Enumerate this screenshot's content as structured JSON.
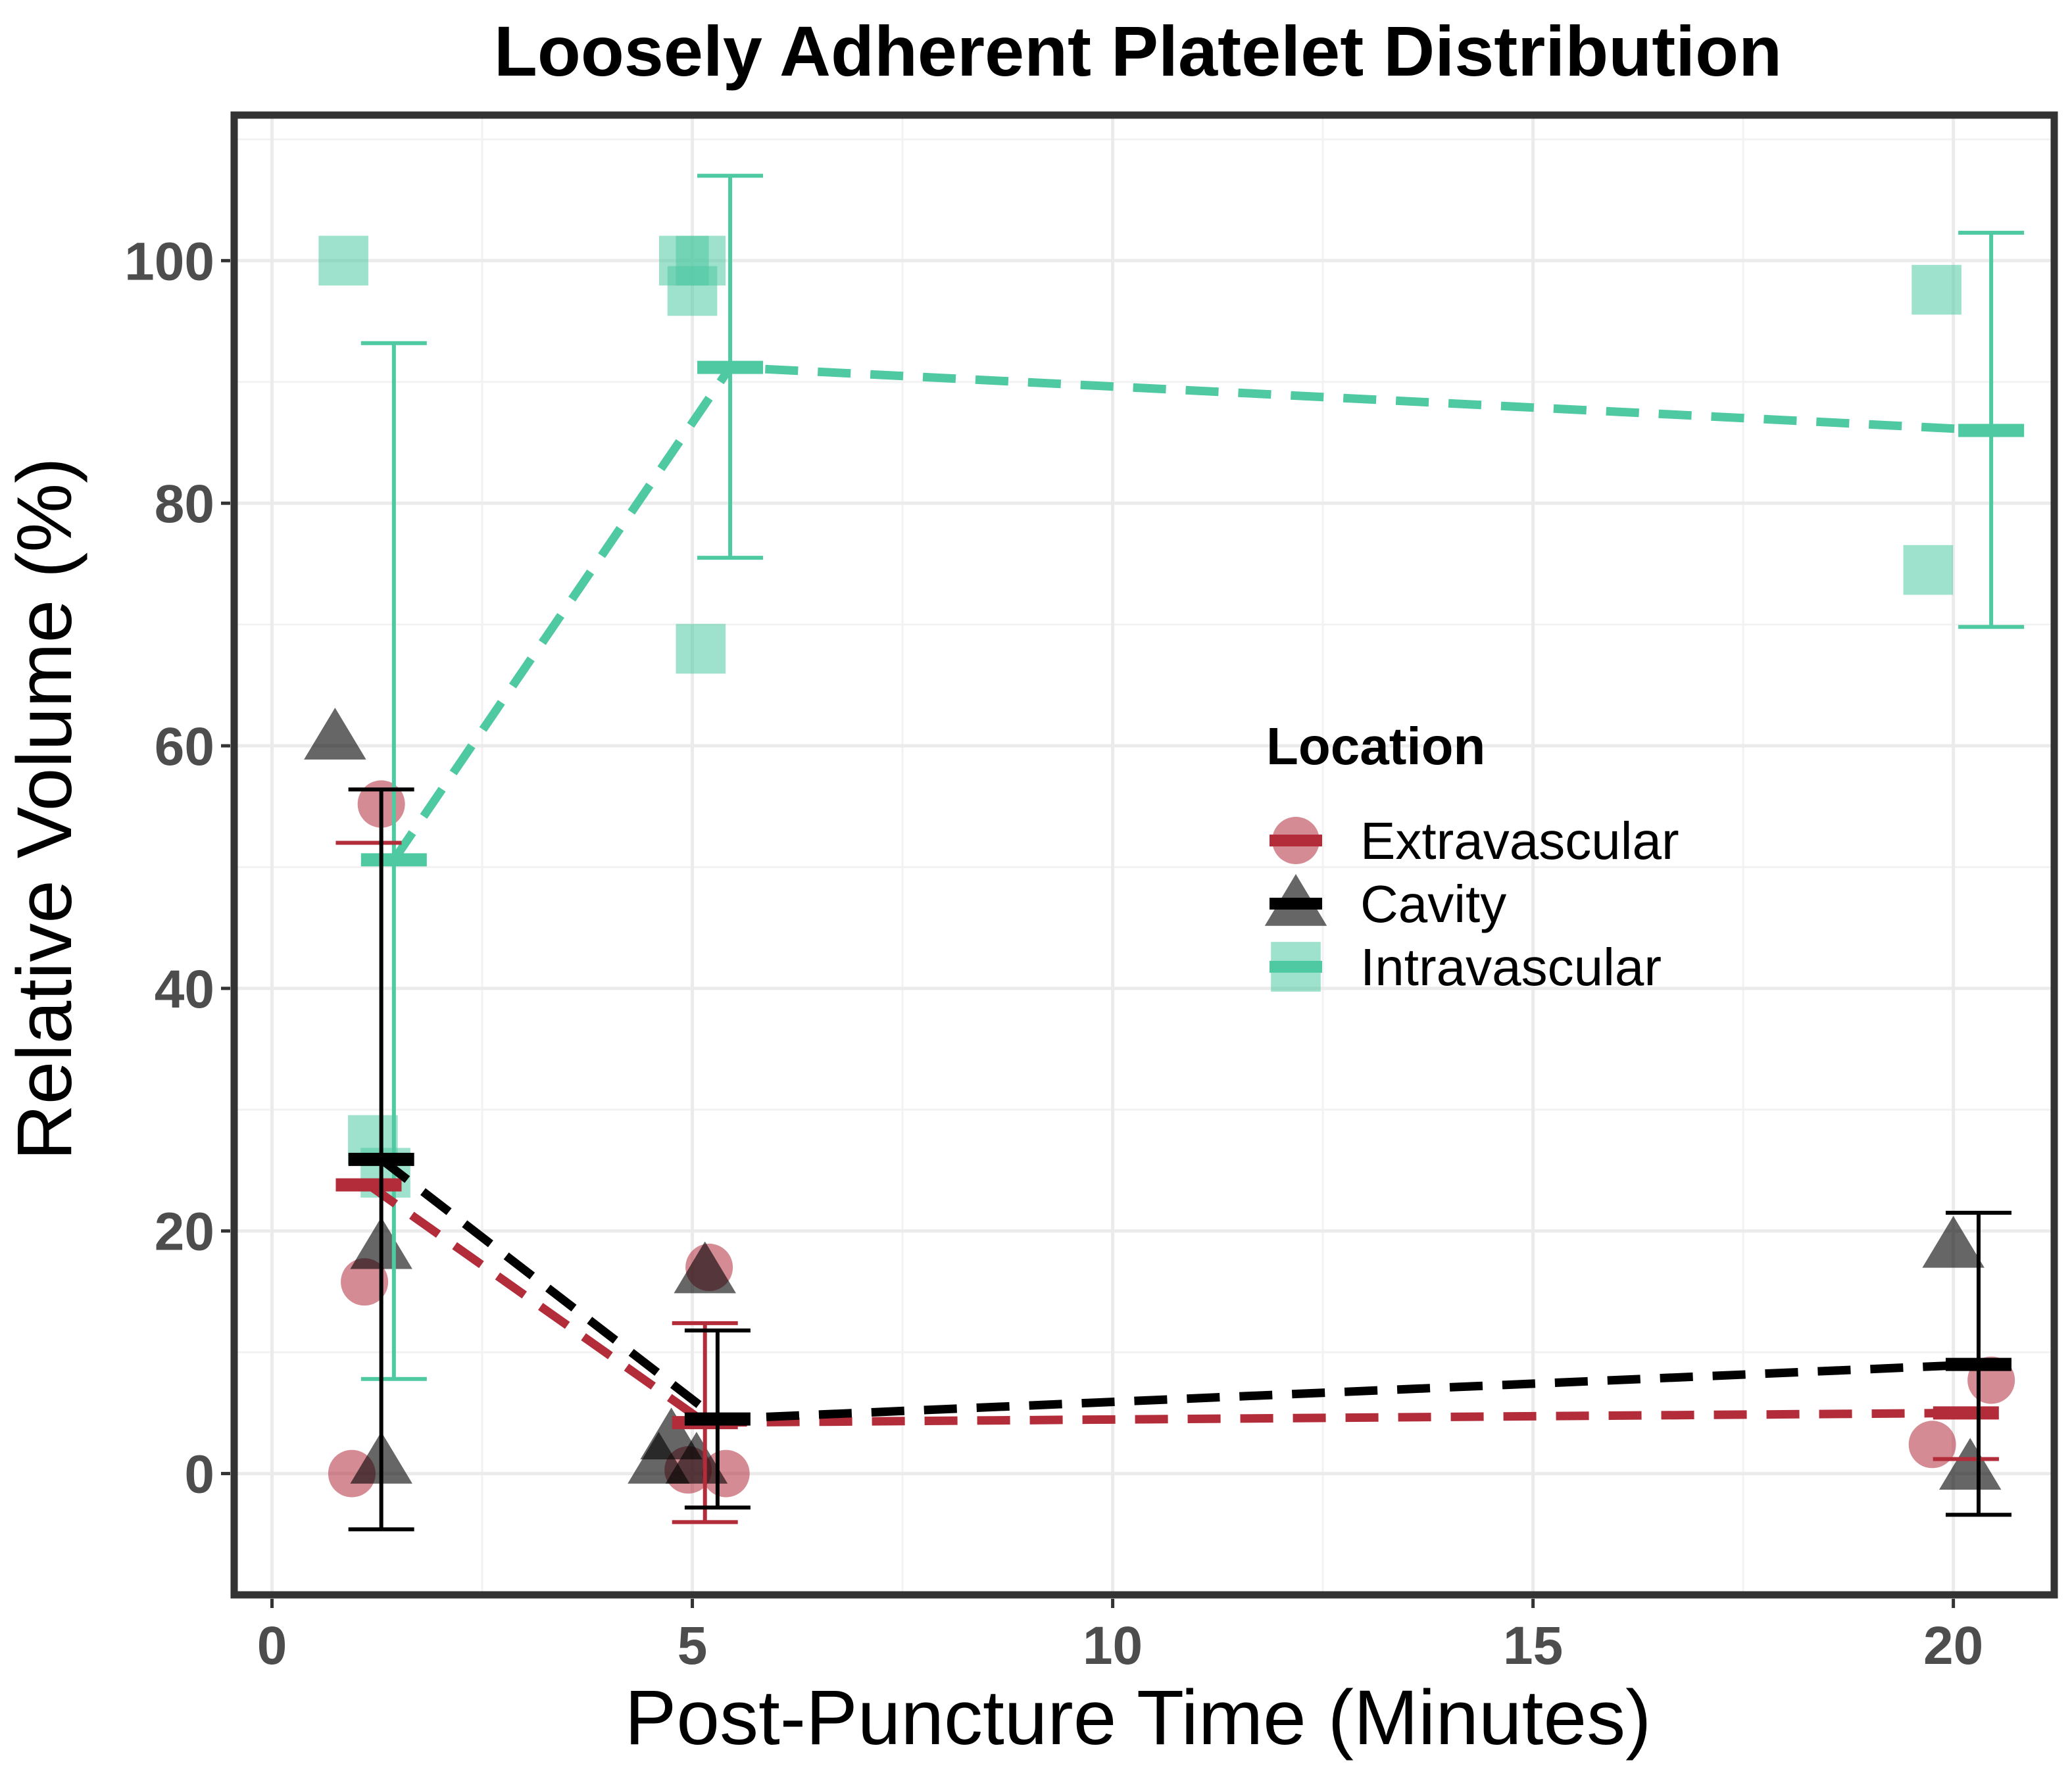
{
  "chart_data": {
    "type": "scatter",
    "title": "Loosely Adherent Platelet Distribution",
    "xlabel": "Post-Puncture Time (Minutes)",
    "ylabel": "Relative Volume (%)",
    "xlim": [
      -0.45,
      21.2
    ],
    "ylim": [
      -10,
      112
    ],
    "x_ticks": [
      0,
      5,
      10,
      15,
      20
    ],
    "y_ticks": [
      0,
      20,
      40,
      60,
      80,
      100
    ],
    "grid": true,
    "legend": {
      "title": "Location",
      "position": "right-center",
      "entries": [
        "Extravascular",
        "Cavity",
        "Intravascular"
      ]
    },
    "series": [
      {
        "name": "Extravascular",
        "color": "#b22c3a",
        "marker": "circle",
        "time": [
          1,
          5,
          20
        ],
        "mean": [
          23.8,
          4.2,
          5.0
        ],
        "error_low": [
          52.0,
          -4.0,
          1.2
        ],
        "error_high": [
          52.0,
          12.4,
          1.2
        ],
        "points": [
          [
            0.95,
            0
          ],
          [
            1.1,
            15.8
          ],
          [
            1.3,
            55.2
          ],
          [
            4.95,
            0.3
          ],
          [
            5.2,
            17
          ],
          [
            5.4,
            0
          ],
          [
            19.75,
            2.4
          ],
          [
            20.45,
            7.7
          ]
        ]
      },
      {
        "name": "Cavity",
        "color": "#000000",
        "marker": "triangle",
        "time": [
          1,
          5,
          20
        ],
        "mean": [
          25.9,
          4.5,
          9.0
        ],
        "error_low": [
          -4.6,
          -2.8,
          -3.4
        ],
        "error_high": [
          56.4,
          11.8,
          21.5
        ],
        "points": [
          [
            0.75,
            60.7
          ],
          [
            1.3,
            18.7
          ],
          [
            1.3,
            1
          ],
          [
            4.6,
            1
          ],
          [
            4.75,
            3
          ],
          [
            5.05,
            1
          ],
          [
            5.15,
            16.7
          ],
          [
            20.0,
            18.8
          ],
          [
            20.2,
            0.5
          ]
        ]
      },
      {
        "name": "Intravascular",
        "color": "#4fc9a2",
        "marker": "square",
        "time": [
          1,
          5,
          20
        ],
        "mean": [
          50.6,
          91.2,
          86.0
        ],
        "error_low": [
          7.8,
          75.5,
          69.8
        ],
        "error_high": [
          93.2,
          107.0,
          102.3
        ],
        "points": [
          [
            0.85,
            100
          ],
          [
            1.2,
            27.5
          ],
          [
            1.35,
            24.8
          ],
          [
            4.9,
            100
          ],
          [
            5.0,
            97.5
          ],
          [
            5.1,
            100
          ],
          [
            5.1,
            68
          ],
          [
            19.7,
            74.5
          ],
          [
            19.8,
            97.6
          ]
        ]
      }
    ]
  }
}
